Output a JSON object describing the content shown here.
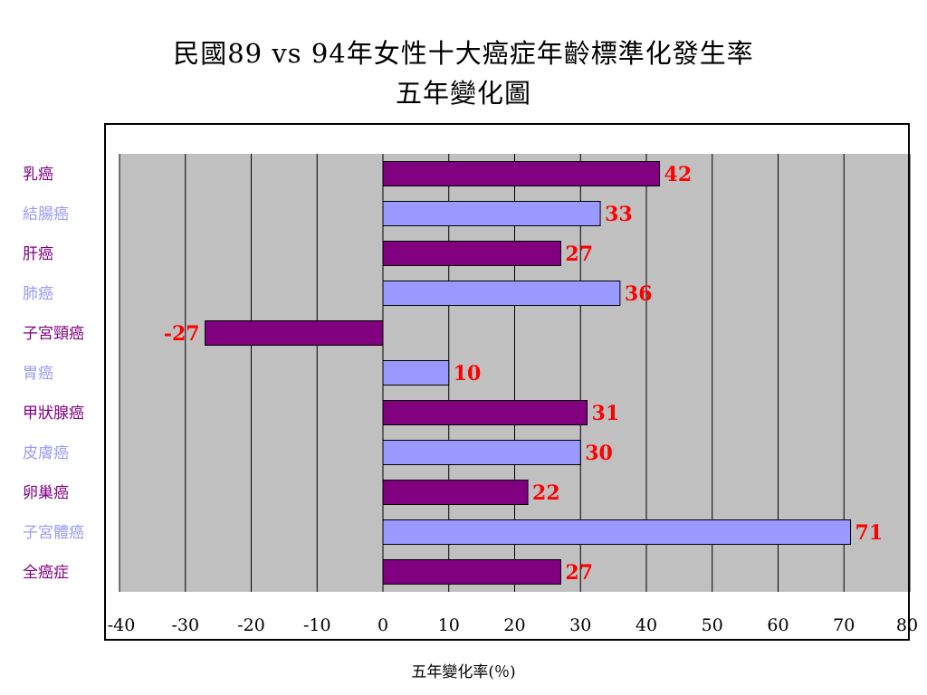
{
  "chart_data": {
    "type": "bar",
    "orientation": "horizontal",
    "title": "民國89 vs 94年女性十大癌症年齡標準化發生率",
    "subtitle": "五年變化圖",
    "xlabel": "五年變化率(％)",
    "ylabel": "",
    "xlim": [
      -40,
      80
    ],
    "xticks": [
      "-40",
      "-30",
      "-20",
      "-10",
      "0",
      "10",
      "20",
      "30",
      "40",
      "50",
      "60",
      "70",
      "80"
    ],
    "grid": true,
    "legend": "none",
    "categories": [
      "乳癌",
      "結腸癌",
      "肝癌",
      "肺癌",
      "子宮頸癌",
      "胃癌",
      "甲狀腺癌",
      "皮膚癌",
      "卵巢癌",
      "子宮體癌",
      "全癌症"
    ],
    "values": [
      42,
      33,
      27,
      36,
      -27,
      10,
      31,
      30,
      22,
      71,
      27
    ],
    "value_labels": [
      "42",
      "33",
      "27",
      "36",
      "-27",
      "10",
      "31",
      "30",
      "22",
      "71",
      "27"
    ],
    "colors": {
      "bar_dark": "#800080",
      "bar_light": "#9999ff",
      "label_dark": "#800080",
      "label_light": "#9999ff",
      "value_label": "#ff0000",
      "plot_background": "#c0c0c0",
      "gridline": "#000000"
    }
  }
}
